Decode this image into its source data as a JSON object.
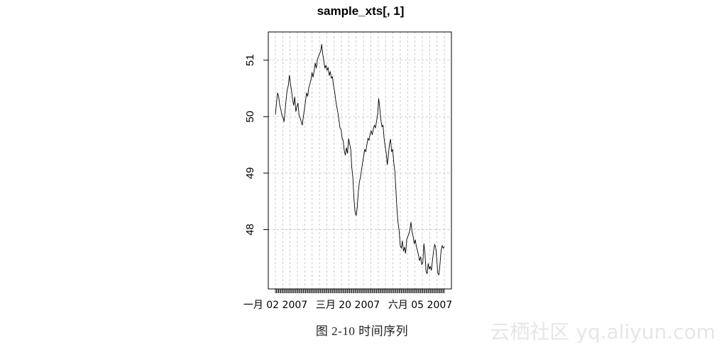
{
  "chart_data": {
    "type": "line",
    "title": "sample_xts[, 1]",
    "xlabel": "",
    "ylabel": "",
    "x_tick_labels": [
      "一月 02 2007",
      "三月 20 2007",
      "六月 05 2007"
    ],
    "y_ticks": [
      48,
      49,
      50,
      51
    ],
    "ylim": [
      46.95,
      51.5
    ],
    "grid": true,
    "series": [
      {
        "values": [
          50.04,
          50.24,
          50.42,
          50.36,
          50.21,
          50.13,
          50.03,
          49.99,
          49.91,
          50.1,
          50.31,
          50.48,
          50.55,
          50.73,
          50.58,
          50.46,
          50.3,
          50.2,
          50.35,
          50.09,
          50.18,
          50.24,
          50.02,
          49.98,
          49.91,
          49.85,
          50.01,
          50.13,
          50.28,
          50.42,
          50.36,
          50.51,
          50.58,
          50.65,
          50.78,
          50.7,
          50.81,
          50.95,
          50.86,
          51.01,
          51.06,
          51.12,
          51.15,
          51.28,
          51.11,
          50.98,
          50.86,
          50.91,
          50.82,
          50.87,
          50.73,
          50.8,
          50.68,
          50.71,
          50.55,
          50.45,
          50.3,
          50.18,
          50.08,
          49.95,
          49.8,
          49.78,
          49.62,
          49.58,
          49.4,
          49.32,
          49.45,
          49.35,
          49.61,
          49.52,
          49.42,
          49.1,
          48.92,
          48.55,
          48.32,
          48.25,
          48.38,
          48.65,
          48.84,
          48.92,
          49.05,
          49.18,
          49.3,
          49.42,
          49.38,
          49.5,
          49.62,
          49.58,
          49.7,
          49.75,
          49.68,
          49.78,
          49.85,
          49.8,
          49.92,
          50.04,
          50.32,
          50.15,
          49.95,
          49.82,
          49.85,
          49.62,
          49.47,
          49.35,
          49.15,
          49.32,
          49.52,
          49.6,
          49.38,
          49.42,
          49.19,
          49.04,
          48.7,
          48.35,
          48.12,
          47.98,
          47.72,
          47.67,
          47.8,
          47.62,
          47.69,
          47.58,
          47.82,
          47.88,
          47.92,
          48.0,
          48.13,
          47.96,
          47.88,
          47.75,
          47.82,
          47.7,
          47.63,
          47.55,
          47.45,
          47.52,
          47.38,
          47.42,
          47.75,
          47.58,
          47.26,
          47.22,
          47.4,
          47.3,
          47.35,
          47.28,
          47.46,
          47.62,
          47.74,
          47.68,
          47.47,
          47.22,
          47.2,
          47.4,
          47.63,
          47.72,
          47.67,
          47.7
        ]
      }
    ]
  },
  "figure_caption": "图 2-10   时间序列",
  "watermark": "云栖社区 yq.aliyun.com",
  "colors": {
    "line": "#000000",
    "grid": "#bebebe",
    "axis": "#000000"
  }
}
